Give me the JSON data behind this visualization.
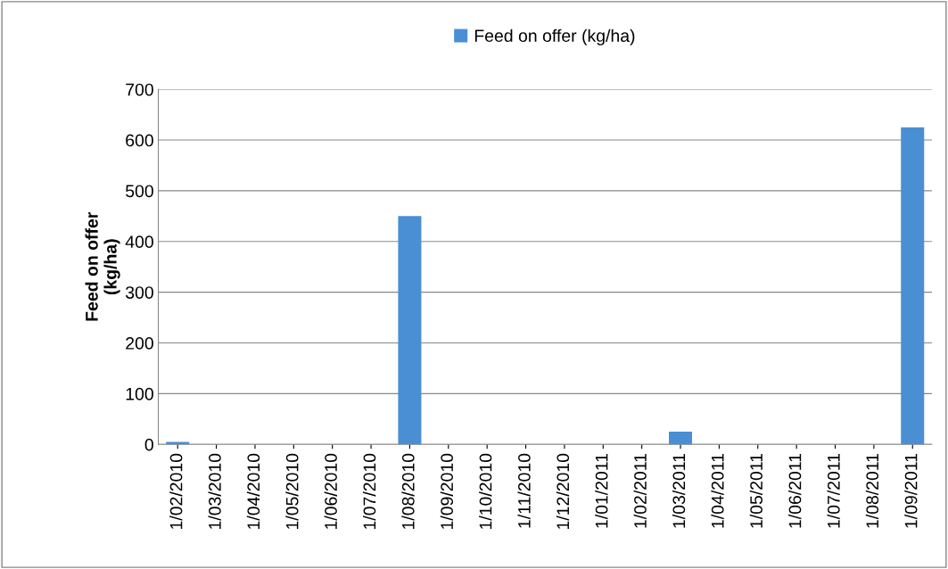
{
  "chart_data": {
    "type": "bar",
    "categories": [
      "1/02/2010",
      "1/03/2010",
      "1/04/2010",
      "1/05/2010",
      "1/06/2010",
      "1/07/2010",
      "1/08/2010",
      "1/09/2010",
      "1/10/2010",
      "1/11/2010",
      "1/12/2010",
      "1/01/2011",
      "1/02/2011",
      "1/03/2011",
      "1/04/2011",
      "1/05/2011",
      "1/06/2011",
      "1/07/2011",
      "1/08/2011",
      "1/09/2011"
    ],
    "series": [
      {
        "name": "Feed on offer (kg/ha)",
        "color": "#4a8fd4",
        "values": [
          5,
          0,
          0,
          0,
          0,
          0,
          450,
          0,
          0,
          0,
          0,
          0,
          0,
          25,
          0,
          0,
          0,
          0,
          0,
          625
        ]
      }
    ],
    "ylabel": "Feed on offer\n(kg/ha)",
    "ylim": [
      0,
      700
    ],
    "yticks": [
      0,
      100,
      200,
      300,
      400,
      500,
      600,
      700
    ],
    "grid": "y",
    "legend": "top"
  }
}
